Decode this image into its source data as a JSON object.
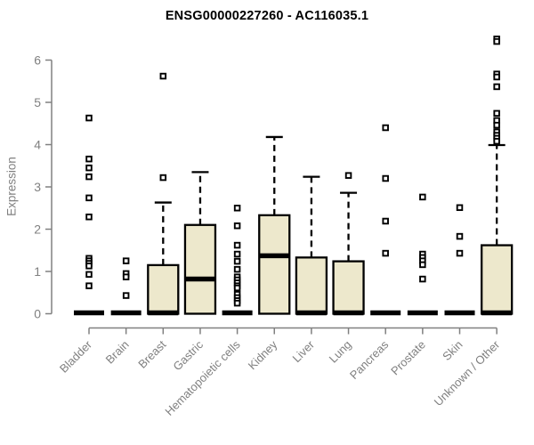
{
  "chart_data": {
    "type": "boxplot",
    "title": "ENSG00000227260 - AC116035.1",
    "ylabel": "Expression",
    "xlabel": "",
    "ylim": [
      0,
      6.6
    ],
    "yticks": [
      0,
      1,
      2,
      3,
      4,
      5,
      6
    ],
    "grid": false,
    "legend": "none",
    "categories": [
      "Bladder",
      "Brain",
      "Breast",
      "Gastric",
      "Hematopoietic cells",
      "Kidney",
      "Liver",
      "Lung",
      "Pancreas",
      "Prostate",
      "Skin",
      "Unknown / Other"
    ],
    "series": [
      {
        "label": "Bladder",
        "q1": 0,
        "median": 0.02,
        "q3": 0.04,
        "whisker_high": null,
        "outliers": [
          4.63,
          3.66,
          3.45,
          3.24,
          2.74,
          2.29,
          1.31,
          1.25,
          1.19,
          1.13,
          0.93,
          0.66
        ]
      },
      {
        "label": "Brain",
        "q1": 0,
        "median": 0.02,
        "q3": 0.04,
        "whisker_high": null,
        "outliers": [
          1.25,
          0.95,
          0.87,
          0.43
        ]
      },
      {
        "label": "Breast",
        "q1": 0,
        "median": 0.02,
        "q3": 1.15,
        "whisker_high": 2.63,
        "outliers": [
          5.62,
          3.22
        ]
      },
      {
        "label": "Gastric",
        "q1": 0,
        "median": 0.82,
        "q3": 2.1,
        "whisker_high": 3.35,
        "outliers": []
      },
      {
        "label": "Hematopoietic cells",
        "q1": 0,
        "median": 0.02,
        "q3": 0.04,
        "whisker_high": null,
        "outliers": [
          2.5,
          2.08,
          1.62,
          1.41,
          1.24,
          1.05,
          0.87,
          0.8,
          0.73,
          0.66,
          0.61,
          0.46,
          0.38,
          0.31,
          0.25
        ]
      },
      {
        "label": "Kidney",
        "q1": 0,
        "median": 1.37,
        "q3": 2.33,
        "whisker_high": 4.18,
        "outliers": []
      },
      {
        "label": "Liver",
        "q1": 0,
        "median": 0.02,
        "q3": 1.33,
        "whisker_high": 3.24,
        "outliers": []
      },
      {
        "label": "Lung",
        "q1": 0,
        "median": 0.02,
        "q3": 1.24,
        "whisker_high": 2.86,
        "outliers": [
          3.27
        ]
      },
      {
        "label": "Pancreas",
        "q1": 0,
        "median": 0.02,
        "q3": 0.04,
        "whisker_high": null,
        "outliers": [
          4.4,
          3.2,
          2.19,
          1.43
        ]
      },
      {
        "label": "Prostate",
        "q1": 0,
        "median": 0.02,
        "q3": 0.04,
        "whisker_high": null,
        "outliers": [
          2.76,
          1.41,
          1.33,
          1.25,
          1.16,
          0.82
        ]
      },
      {
        "label": "Skin",
        "q1": 0,
        "median": 0.02,
        "q3": 0.04,
        "whisker_high": null,
        "outliers": [
          2.51,
          1.83,
          1.43
        ]
      },
      {
        "label": "Unknown / Other",
        "q1": 0,
        "median": 0.02,
        "q3": 1.62,
        "whisker_high": 3.99,
        "outliers": [
          6.5,
          6.44,
          5.67,
          5.6,
          5.37,
          4.74,
          4.57,
          4.46,
          4.3,
          4.22,
          4.15,
          4.08
        ]
      }
    ],
    "colors": {
      "box_fill": "#EDE8CC",
      "box_stroke": "#000000",
      "axis": "#808080",
      "title": "#000000",
      "background": "#FFFFFF"
    }
  }
}
